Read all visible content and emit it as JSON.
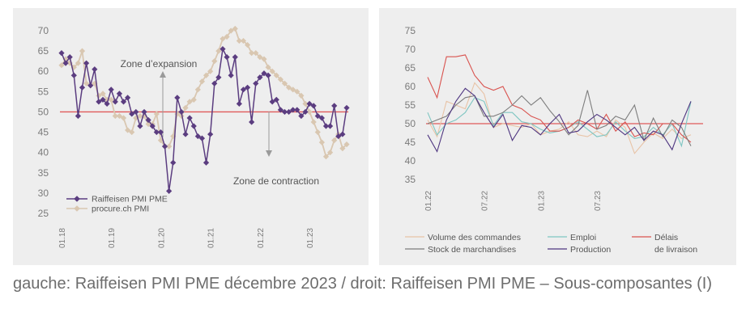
{
  "caption": "gauche: Raiffeisen PMI PME décembre 2023 / droit: Raiffeisen PMI PME – Sous-composantes (I)",
  "colors": {
    "raiffeisen": "#5b3d80",
    "procure": "#d9c7b1",
    "reference_line": "#e05a5a",
    "volume": "#e8c3a6",
    "emploi": "#7fc6c2",
    "delais": "#d9534f",
    "stock": "#7d7d7d",
    "production": "#4e3580"
  },
  "chart_data": [
    {
      "type": "line",
      "title": "",
      "xlabel": "",
      "ylabel": "",
      "ylim": [
        25,
        70
      ],
      "yticks": [
        25,
        30,
        35,
        40,
        45,
        50,
        55,
        60,
        65,
        70
      ],
      "xticks": [
        "01.18",
        "01.19",
        "01.20",
        "01.21",
        "01.22",
        "01.23"
      ],
      "reference_line": 50,
      "grid": false,
      "legend_position": "bottom-left",
      "annotations": [
        "Zone d’expansion",
        "Zone de contraction"
      ],
      "series": [
        {
          "name": "Raiffeisen PMI PME",
          "marker": "diamond",
          "values": [
            64.5,
            62,
            63.5,
            59,
            49,
            56,
            62,
            56.5,
            60.5,
            52.5,
            53,
            52,
            55.5,
            52.5,
            54.5,
            52.5,
            53.5,
            49.5,
            50,
            46.5,
            50,
            48,
            46.5,
            45,
            45,
            41.5,
            30.5,
            37.5,
            53.5,
            50,
            44.5,
            48.5,
            46.5,
            44,
            43.5,
            37.5,
            44.5,
            57,
            58.5,
            65.5,
            63.5,
            59,
            63.5,
            52,
            55.5,
            56,
            47.5,
            57,
            58.5,
            59.5,
            59,
            52.5,
            53,
            50.5,
            50,
            50,
            50.5,
            50.5,
            49,
            50,
            52,
            51.5,
            49,
            48.5,
            46.5,
            46.5,
            51.5,
            44,
            44.5,
            51
          ],
          "end_values": [
            46.5,
            51
          ]
        },
        {
          "name": "procure.ch PMI",
          "marker": "diamond",
          "values": [
            61.5,
            63,
            62,
            61,
            62,
            65,
            57,
            56.5,
            57,
            54,
            54.5,
            53,
            53,
            49,
            49,
            48.5,
            45.5,
            45,
            48.5,
            49,
            49,
            47,
            47,
            49.5,
            43,
            41.5,
            41.5,
            44,
            49.5,
            49,
            51,
            52.5,
            53,
            55.5,
            57.5,
            59,
            60,
            62.5,
            65,
            68,
            68.5,
            70,
            70.5,
            67.5,
            67.5,
            66.5,
            64.5,
            64.5,
            63.5,
            63,
            61,
            60,
            59,
            58,
            57,
            56,
            55.5,
            55,
            54,
            52,
            50,
            47.5,
            45,
            42.5,
            39,
            40,
            43,
            44.5,
            41,
            42
          ]
        }
      ]
    },
    {
      "type": "line",
      "title": "",
      "xlabel": "",
      "ylabel": "",
      "ylim": [
        35,
        75
      ],
      "yticks": [
        35,
        40,
        45,
        50,
        55,
        60,
        65,
        70,
        75
      ],
      "xticks": [
        "01.22",
        "07.22",
        "01.23",
        "07.23"
      ],
      "reference_line": 50,
      "grid": false,
      "legend_position": "bottom",
      "series": [
        {
          "name": "Volume des commandes",
          "values": [
            51,
            46.5,
            56,
            55,
            54,
            61,
            58,
            49,
            50,
            49.5,
            49,
            50,
            47,
            48,
            48.5,
            50.5,
            47,
            46.5,
            48,
            46.5,
            51,
            49,
            42,
            45,
            47.5,
            46,
            48.5,
            46,
            47
          ]
        },
        {
          "name": "Emploi",
          "values": [
            53,
            47,
            50,
            51,
            53,
            57,
            56,
            49.5,
            53,
            53,
            50.5,
            50,
            48.5,
            47.5,
            48,
            49,
            50.5,
            48.5,
            46.5,
            47,
            50.5,
            48,
            46,
            46.5,
            49,
            47,
            50,
            44,
            56
          ]
        },
        {
          "name": "Délais de livraison",
          "values": [
            62.5,
            57,
            68,
            68,
            68.5,
            63,
            60,
            59,
            60,
            55,
            54,
            52,
            51,
            48,
            48,
            49,
            51,
            50,
            48.5,
            52.5,
            48,
            50.5,
            46.5,
            47.5,
            47,
            50,
            50,
            47,
            45
          ]
        },
        {
          "name": "Stock de marchandises",
          "values": [
            50,
            51,
            52,
            55,
            57,
            57.5,
            52,
            52,
            53,
            55,
            57.5,
            55,
            57,
            53.5,
            50.5,
            47,
            49.5,
            59,
            48.5,
            49.5,
            52,
            51,
            55,
            45.5,
            51.5,
            46.5,
            51,
            49,
            44
          ]
        },
        {
          "name": "Production",
          "values": [
            47,
            42.5,
            51,
            56,
            59.5,
            57.5,
            53,
            49,
            52.5,
            45.5,
            49.5,
            49,
            47,
            50,
            52.5,
            47.5,
            48,
            50.5,
            52.5,
            51,
            49,
            47,
            49,
            45.5,
            48,
            47,
            43,
            50,
            56
          ]
        }
      ]
    }
  ]
}
